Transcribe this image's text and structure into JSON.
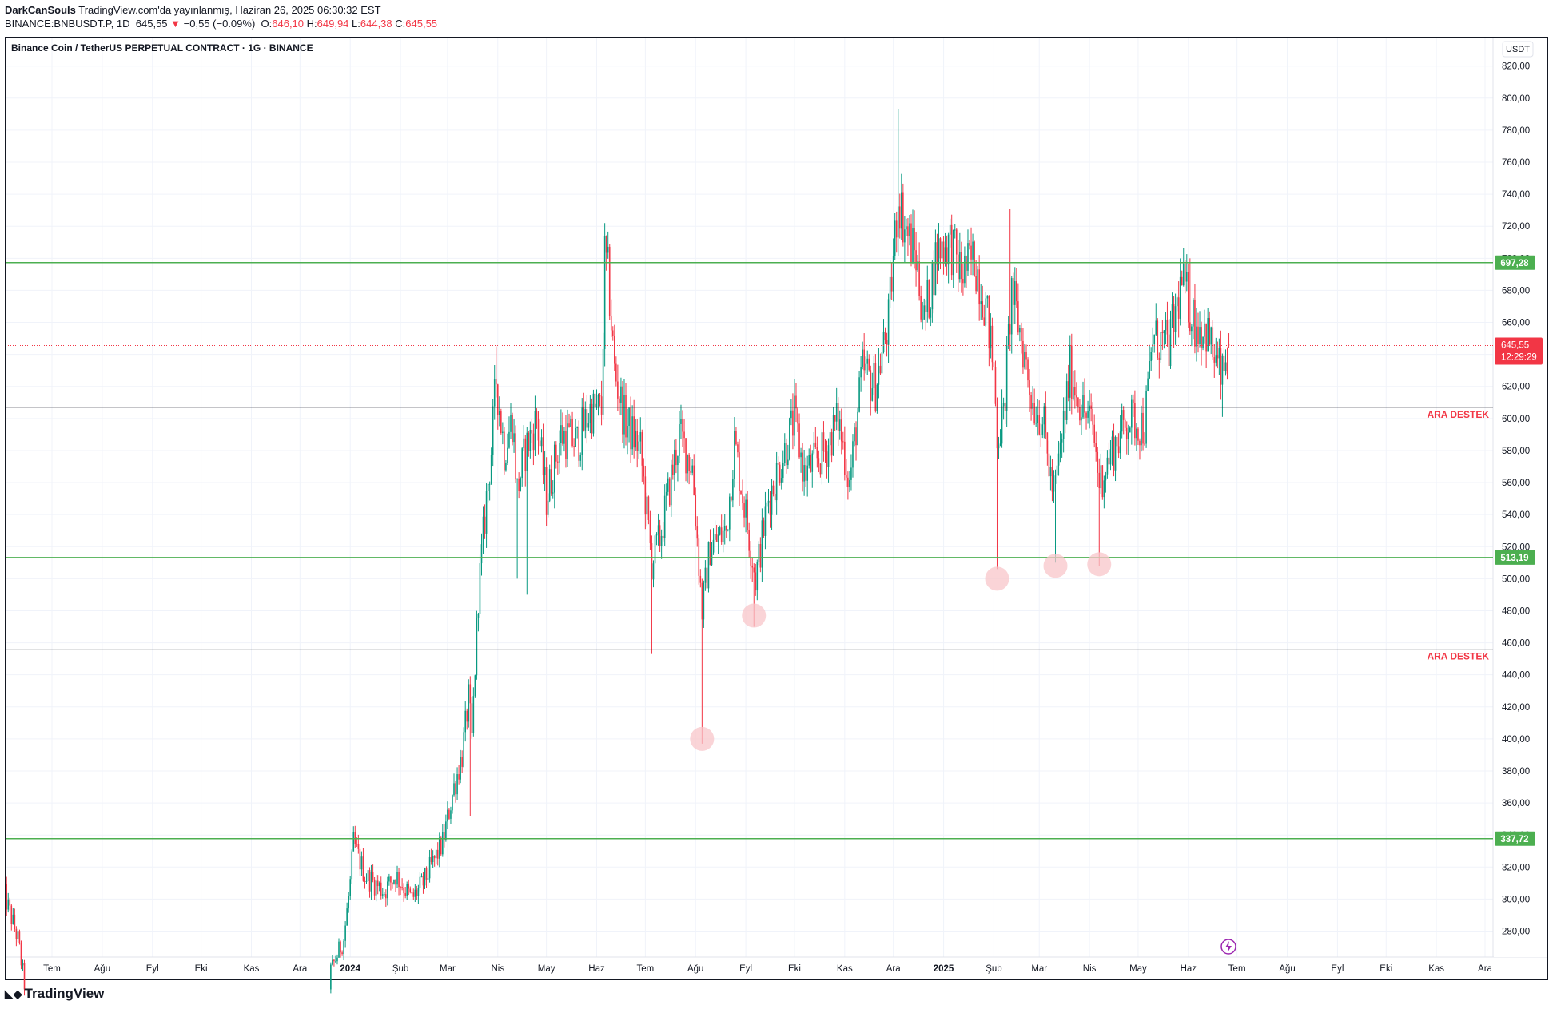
{
  "header": {
    "author": "DarkCanSouls",
    "published": "TradingView.com'da yayınlanmış, Haziran 26, 2025 06:30:32 EST",
    "ticker": "BINANCE:BNBUSDT.P, 1D",
    "last": "645,55",
    "change_arrow": "▼",
    "change": "−0,55 (−0.09%)",
    "o_label": "O:",
    "o": "646,10",
    "h_label": "H:",
    "h": "649,94",
    "l_label": "L:",
    "l": "644,38",
    "c_label": "C:",
    "c": "645,55"
  },
  "symbol_title": "Binance Coin / TetherUS PERPETUAL CONTRACT · 1G · BINANCE",
  "footer": {
    "brand": "TradingView",
    "logo_icon": "tradingview-logo-icon"
  },
  "colors": {
    "up": "#089981",
    "down": "#f23645",
    "level": "#4caf50",
    "support_line": "#131722",
    "marker": "#f8c5c9",
    "price_label": "#f23645"
  },
  "chart_data": {
    "type": "candlestick",
    "currency": "USDT",
    "ylim": [
      265,
      830
    ],
    "yticks": [
      "820,00",
      "800,00",
      "780,00",
      "760,00",
      "740,00",
      "720,00",
      "700,00",
      "680,00",
      "660,00",
      "640,00",
      "620,00",
      "600,00",
      "580,00",
      "560,00",
      "540,00",
      "520,00",
      "500,00",
      "480,00",
      "460,00",
      "440,00",
      "420,00",
      "400,00",
      "380,00",
      "360,00",
      "340,00",
      "320,00",
      "300,00",
      "280,00"
    ],
    "xticks": [
      {
        "label": "Tem",
        "date": "2023-07-01"
      },
      {
        "label": "Ağu",
        "date": "2023-08-01"
      },
      {
        "label": "Eyl",
        "date": "2023-09-01"
      },
      {
        "label": "Eki",
        "date": "2023-10-01"
      },
      {
        "label": "Kas",
        "date": "2023-11-01"
      },
      {
        "label": "Ara",
        "date": "2023-12-01"
      },
      {
        "label": "2024",
        "date": "2024-01-01",
        "bold": true
      },
      {
        "label": "Şub",
        "date": "2024-02-01"
      },
      {
        "label": "Mar",
        "date": "2024-03-01"
      },
      {
        "label": "Nis",
        "date": "2024-04-01"
      },
      {
        "label": "May",
        "date": "2024-05-01"
      },
      {
        "label": "Haz",
        "date": "2024-06-01"
      },
      {
        "label": "Tem",
        "date": "2024-07-01"
      },
      {
        "label": "Ağu",
        "date": "2024-08-01"
      },
      {
        "label": "Eyl",
        "date": "2024-09-01"
      },
      {
        "label": "Eki",
        "date": "2024-10-01"
      },
      {
        "label": "Kas",
        "date": "2024-11-01"
      },
      {
        "label": "Ara",
        "date": "2024-12-01"
      },
      {
        "label": "2025",
        "date": "2025-01-01",
        "bold": true
      },
      {
        "label": "Şub",
        "date": "2025-02-01"
      },
      {
        "label": "Mar",
        "date": "2025-03-01"
      },
      {
        "label": "Nis",
        "date": "2025-04-01"
      },
      {
        "label": "May",
        "date": "2025-05-01"
      },
      {
        "label": "Haz",
        "date": "2025-06-01"
      },
      {
        "label": "Tem",
        "date": "2025-07-01"
      },
      {
        "label": "Ağu",
        "date": "2025-08-01"
      },
      {
        "label": "Eyl",
        "date": "2025-09-01"
      },
      {
        "label": "Eki",
        "date": "2025-10-01"
      },
      {
        "label": "Kas",
        "date": "2025-11-01"
      },
      {
        "label": "Ara",
        "date": "2025-12-01"
      }
    ],
    "horizontal_levels": [
      {
        "price": 697.28,
        "label": "697,28",
        "color": "#4caf50"
      },
      {
        "price": 513.19,
        "label": "513,19",
        "color": "#4caf50"
      },
      {
        "price": 337.72,
        "label": "337,72",
        "color": "#4caf50"
      }
    ],
    "support_lines": [
      {
        "price": 607,
        "text": "ARA DESTEK"
      },
      {
        "price": 456,
        "text": "ARA DESTEK"
      }
    ],
    "current_price": {
      "price": 645.55,
      "label": "645,55",
      "countdown": "12:29:29"
    },
    "low_markers": [
      {
        "date": "2024-08-05",
        "price": 400
      },
      {
        "date": "2024-09-06",
        "price": 477
      },
      {
        "date": "2025-02-03",
        "price": 500
      },
      {
        "date": "2025-03-11",
        "price": 508
      },
      {
        "date": "2025-04-07",
        "price": 509
      }
    ],
    "path": [
      {
        "date": "2023-06-01",
        "price": 305
      },
      {
        "date": "2023-06-10",
        "price": 275
      },
      {
        "date": "2023-06-15",
        "price": 240
      },
      {
        "date": "2023-12-20",
        "price": 255
      },
      {
        "date": "2023-12-28",
        "price": 275
      },
      {
        "date": "2024-01-01",
        "price": 310
      },
      {
        "date": "2024-01-03",
        "price": 335
      },
      {
        "date": "2024-01-10",
        "price": 315
      },
      {
        "date": "2024-01-22",
        "price": 305
      },
      {
        "date": "2024-01-29",
        "price": 315
      },
      {
        "date": "2024-02-08",
        "price": 300
      },
      {
        "date": "2024-02-15",
        "price": 310
      },
      {
        "date": "2024-02-27",
        "price": 335
      },
      {
        "date": "2024-03-05",
        "price": 370
      },
      {
        "date": "2024-03-10",
        "price": 390
      },
      {
        "date": "2024-03-14",
        "price": 425
      },
      {
        "date": "2024-03-16",
        "price": 400
      },
      {
        "date": "2024-03-20",
        "price": 490
      },
      {
        "date": "2024-03-25",
        "price": 550
      },
      {
        "date": "2024-03-28",
        "price": 580
      },
      {
        "date": "2024-03-31",
        "price": 625
      },
      {
        "date": "2024-04-05",
        "price": 580
      },
      {
        "date": "2024-04-10",
        "price": 600
      },
      {
        "date": "2024-04-13",
        "price": 555
      },
      {
        "date": "2024-04-18",
        "price": 580
      },
      {
        "date": "2024-04-25",
        "price": 600
      },
      {
        "date": "2024-05-01",
        "price": 550
      },
      {
        "date": "2024-05-10",
        "price": 590
      },
      {
        "date": "2024-05-20",
        "price": 585
      },
      {
        "date": "2024-05-28",
        "price": 605
      },
      {
        "date": "2024-06-04",
        "price": 605
      },
      {
        "date": "2024-06-06",
        "price": 700
      },
      {
        "date": "2024-06-08",
        "price": 690
      },
      {
        "date": "2024-06-12",
        "price": 630
      },
      {
        "date": "2024-06-18",
        "price": 600
      },
      {
        "date": "2024-06-28",
        "price": 580
      },
      {
        "date": "2024-07-05",
        "price": 510
      },
      {
        "date": "2024-07-10",
        "price": 525
      },
      {
        "date": "2024-07-22",
        "price": 590
      },
      {
        "date": "2024-07-30",
        "price": 570
      },
      {
        "date": "2024-08-05",
        "price": 480
      },
      {
        "date": "2024-08-10",
        "price": 520
      },
      {
        "date": "2024-08-20",
        "price": 530
      },
      {
        "date": "2024-08-25",
        "price": 585
      },
      {
        "date": "2024-09-01",
        "price": 540
      },
      {
        "date": "2024-09-07",
        "price": 500
      },
      {
        "date": "2024-09-15",
        "price": 550
      },
      {
        "date": "2024-09-25",
        "price": 580
      },
      {
        "date": "2024-10-01",
        "price": 600
      },
      {
        "date": "2024-10-07",
        "price": 565
      },
      {
        "date": "2024-10-20",
        "price": 580
      },
      {
        "date": "2024-10-28",
        "price": 600
      },
      {
        "date": "2024-11-04",
        "price": 560
      },
      {
        "date": "2024-11-12",
        "price": 630
      },
      {
        "date": "2024-11-20",
        "price": 620
      },
      {
        "date": "2024-11-28",
        "price": 660
      },
      {
        "date": "2024-12-04",
        "price": 740
      },
      {
        "date": "2024-12-08",
        "price": 720
      },
      {
        "date": "2024-12-15",
        "price": 700
      },
      {
        "date": "2024-12-20",
        "price": 660
      },
      {
        "date": "2024-12-28",
        "price": 705
      },
      {
        "date": "2025-01-05",
        "price": 710
      },
      {
        "date": "2025-01-12",
        "price": 690
      },
      {
        "date": "2025-01-20",
        "price": 700
      },
      {
        "date": "2025-01-27",
        "price": 670
      },
      {
        "date": "2025-02-01",
        "price": 630
      },
      {
        "date": "2025-02-03",
        "price": 590
      },
      {
        "date": "2025-02-07",
        "price": 600
      },
      {
        "date": "2025-02-12",
        "price": 680
      },
      {
        "date": "2025-02-18",
        "price": 650
      },
      {
        "date": "2025-02-25",
        "price": 610
      },
      {
        "date": "2025-03-03",
        "price": 600
      },
      {
        "date": "2025-03-10",
        "price": 550
      },
      {
        "date": "2025-03-14",
        "price": 580
      },
      {
        "date": "2025-03-20",
        "price": 630
      },
      {
        "date": "2025-03-28",
        "price": 605
      },
      {
        "date": "2025-04-03",
        "price": 595
      },
      {
        "date": "2025-04-07",
        "price": 560
      },
      {
        "date": "2025-04-15",
        "price": 580
      },
      {
        "date": "2025-04-25",
        "price": 600
      },
      {
        "date": "2025-05-05",
        "price": 595
      },
      {
        "date": "2025-05-10",
        "price": 650
      },
      {
        "date": "2025-05-20",
        "price": 645
      },
      {
        "date": "2025-05-28",
        "price": 685
      },
      {
        "date": "2025-06-05",
        "price": 660
      },
      {
        "date": "2025-06-12",
        "price": 655
      },
      {
        "date": "2025-06-18",
        "price": 635
      },
      {
        "date": "2025-06-22",
        "price": 625
      },
      {
        "date": "2025-06-26",
        "price": 645
      }
    ],
    "extreme_wicks": [
      {
        "date": "2024-03-15",
        "low": 352
      },
      {
        "date": "2024-03-31",
        "high": 645
      },
      {
        "date": "2024-04-13",
        "low": 500
      },
      {
        "date": "2024-04-19",
        "low": 490
      },
      {
        "date": "2024-06-06",
        "high": 722
      },
      {
        "date": "2024-07-05",
        "low": 453
      },
      {
        "date": "2024-08-05",
        "low": 397
      },
      {
        "date": "2024-09-06",
        "low": 470
      },
      {
        "date": "2024-12-04",
        "high": 793
      },
      {
        "date": "2025-02-03",
        "low": 506
      },
      {
        "date": "2025-02-11",
        "high": 731
      },
      {
        "date": "2025-03-11",
        "low": 510
      },
      {
        "date": "2025-04-07",
        "low": 508
      },
      {
        "date": "2025-06-02",
        "high": 700
      },
      {
        "date": "2025-06-22",
        "low": 601
      }
    ],
    "path_is_approximate": true,
    "ai_icon": "lightning-icon"
  }
}
